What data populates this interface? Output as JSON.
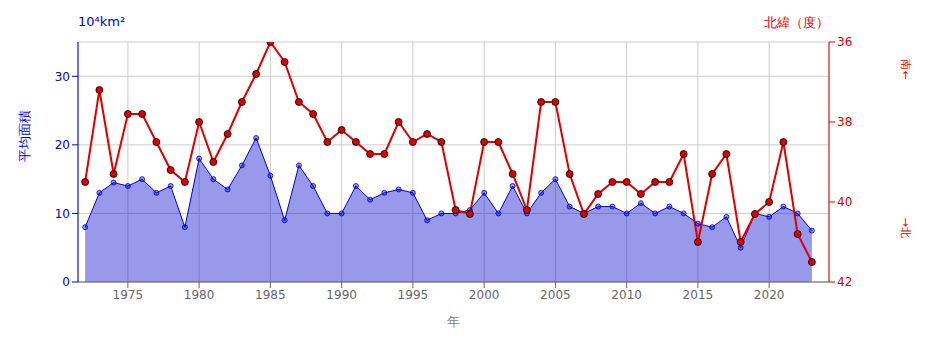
{
  "chart_data": {
    "type": "line",
    "xlabel": "年",
    "ylabel": "平均面積",
    "y2label": "北緯（度）",
    "annotations": [
      "10⁴km²",
      "南←",
      "→北"
    ],
    "x": [
      1972,
      1973,
      1974,
      1975,
      1976,
      1977,
      1978,
      1979,
      1980,
      1981,
      1982,
      1983,
      1984,
      1985,
      1986,
      1987,
      1988,
      1989,
      1990,
      1991,
      1992,
      1993,
      1994,
      1995,
      1996,
      1997,
      1998,
      1999,
      2000,
      2001,
      2002,
      2003,
      2004,
      2005,
      2006,
      2007,
      2008,
      2009,
      2010,
      2011,
      2012,
      2013,
      2014,
      2015,
      2016,
      2017,
      2018,
      2019,
      2020,
      2021,
      2022,
      2023
    ],
    "series": [
      {
        "type": "area",
        "color": "#0000cc",
        "marker": "circle",
        "values": [
          8.0,
          13.0,
          14.5,
          14.0,
          15.0,
          13.0,
          14.0,
          8.0,
          18.0,
          15.0,
          13.5,
          17.0,
          21.0,
          15.5,
          9.0,
          17.0,
          14.0,
          10.0,
          10.0,
          14.0,
          12.0,
          13.0,
          13.5,
          13.0,
          9.0,
          10.0,
          10.0,
          10.5,
          13.0,
          10.0,
          14.0,
          10.0,
          13.0,
          15.0,
          11.0,
          10.0,
          11.0,
          11.0,
          10.0,
          11.5,
          10.0,
          11.0,
          10.0,
          8.5,
          8.0,
          9.5,
          5.0,
          10.0,
          9.5,
          11.0,
          10.0,
          7.5
        ]
      },
      {
        "type": "line",
        "axis": "y2",
        "color": "#dd0000",
        "marker": "circle",
        "values": [
          39.5,
          37.2,
          39.3,
          37.8,
          37.8,
          38.5,
          39.2,
          39.5,
          38.0,
          39.0,
          38.3,
          37.5,
          36.8,
          36.0,
          36.5,
          37.5,
          37.8,
          38.5,
          38.2,
          38.5,
          38.8,
          38.8,
          38.0,
          38.5,
          38.3,
          38.5,
          40.2,
          40.3,
          38.5,
          38.5,
          39.3,
          40.2,
          37.5,
          37.5,
          39.3,
          40.3,
          39.8,
          39.5,
          39.5,
          39.8,
          39.5,
          39.5,
          38.8,
          41.0,
          39.3,
          38.8,
          41.0,
          40.3,
          40.0,
          38.5,
          40.8,
          41.5
        ]
      }
    ],
    "xlim": [
      1971.5,
      2024.2
    ],
    "xticks": [
      1975,
      1980,
      1985,
      1990,
      1995,
      2000,
      2005,
      2010,
      2015,
      2020
    ],
    "ylim": [
      0,
      35
    ],
    "yticks": [
      0,
      10,
      20,
      30
    ],
    "y2lim": [
      42,
      36
    ],
    "y2ticks": [
      36,
      38,
      40,
      42
    ],
    "grid": true
  }
}
